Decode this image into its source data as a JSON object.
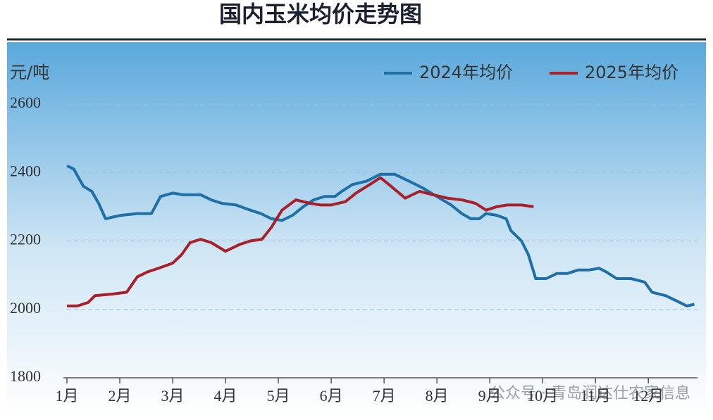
{
  "chart_data": {
    "type": "line",
    "title": "国内玉米均价走势图",
    "y_label": "元/吨",
    "watermark": "公众号 · 青岛润达仕农家信息",
    "xlim": [
      1,
      12.93
    ],
    "xticks": [
      {
        "value": 1,
        "label": "1月"
      },
      {
        "value": 2,
        "label": "2月"
      },
      {
        "value": 3,
        "label": "3月"
      },
      {
        "value": 4,
        "label": "4月"
      },
      {
        "value": 5,
        "label": "5月"
      },
      {
        "value": 6,
        "label": "6月"
      },
      {
        "value": 7,
        "label": "7月"
      },
      {
        "value": 8,
        "label": "8月"
      },
      {
        "value": 9,
        "label": "9月"
      },
      {
        "value": 10,
        "label": "10月"
      },
      {
        "value": 11,
        "label": "11月"
      },
      {
        "value": 12,
        "label": "12月"
      }
    ],
    "ylim": [
      1800,
      2600
    ],
    "yticks": [
      1800,
      2000,
      2200,
      2400,
      2600
    ],
    "grid": true,
    "legend": "top-right",
    "series": [
      {
        "name": "2024年均价",
        "color": "#1f6fa8",
        "x": [
          1.0,
          1.13,
          1.31,
          1.47,
          1.6,
          1.73,
          1.87,
          2.03,
          2.33,
          2.6,
          2.77,
          3.0,
          3.2,
          3.53,
          3.73,
          3.93,
          4.2,
          4.47,
          4.67,
          4.87,
          5.07,
          5.27,
          5.47,
          5.67,
          5.87,
          6.07,
          6.2,
          6.4,
          6.67,
          6.93,
          7.2,
          7.47,
          7.73,
          8.0,
          8.27,
          8.47,
          8.64,
          8.8,
          8.93,
          9.13,
          9.31,
          9.4,
          9.6,
          9.73,
          9.87,
          10.07,
          10.27,
          10.47,
          10.67,
          10.87,
          11.07,
          11.2,
          11.4,
          11.67,
          11.93,
          12.07,
          12.33,
          12.53,
          12.73,
          12.87
        ],
        "values": [
          2420,
          2410,
          2360,
          2345,
          2310,
          2265,
          2270,
          2275,
          2280,
          2280,
          2330,
          2340,
          2335,
          2335,
          2320,
          2310,
          2305,
          2290,
          2280,
          2265,
          2260,
          2275,
          2300,
          2320,
          2330,
          2330,
          2345,
          2365,
          2375,
          2395,
          2395,
          2375,
          2355,
          2330,
          2305,
          2280,
          2265,
          2265,
          2280,
          2275,
          2265,
          2230,
          2200,
          2160,
          2090,
          2090,
          2105,
          2105,
          2115,
          2115,
          2120,
          2110,
          2090,
          2090,
          2080,
          2050,
          2040,
          2025,
          2010,
          2015
        ]
      },
      {
        "name": "2025年均价",
        "color": "#a8202a",
        "x": [
          1.0,
          1.2,
          1.4,
          1.53,
          1.87,
          2.13,
          2.33,
          2.53,
          2.73,
          3.0,
          3.17,
          3.33,
          3.53,
          3.73,
          4.0,
          4.27,
          4.47,
          4.69,
          4.87,
          5.07,
          5.33,
          5.6,
          5.8,
          6.0,
          6.27,
          6.47,
          6.73,
          6.93,
          7.13,
          7.4,
          7.67,
          7.93,
          8.2,
          8.47,
          8.73,
          8.93,
          9.13,
          9.33,
          9.6,
          9.83
        ],
        "values": [
          2010,
          2010,
          2020,
          2040,
          2045,
          2050,
          2095,
          2110,
          2120,
          2135,
          2160,
          2195,
          2205,
          2195,
          2170,
          2190,
          2200,
          2205,
          2240,
          2290,
          2320,
          2310,
          2305,
          2305,
          2315,
          2340,
          2365,
          2385,
          2360,
          2325,
          2345,
          2335,
          2325,
          2320,
          2310,
          2290,
          2300,
          2305,
          2305,
          2300
        ]
      }
    ]
  }
}
